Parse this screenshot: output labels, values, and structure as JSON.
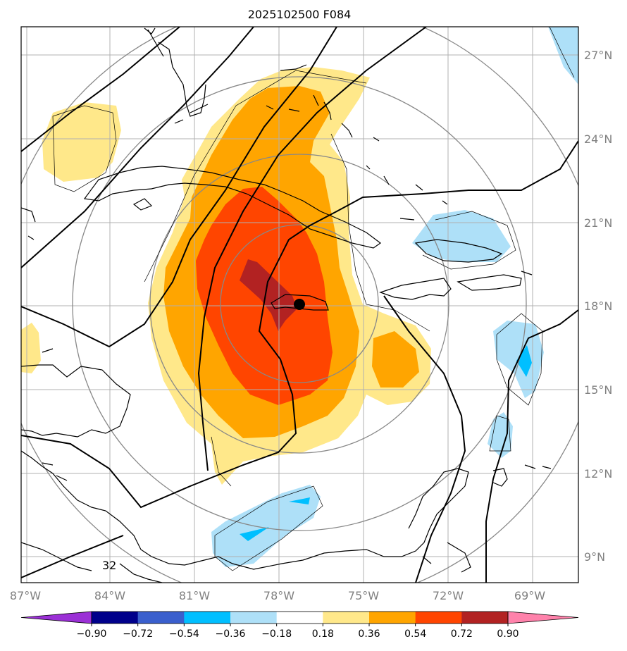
{
  "title": "2025102500 F084",
  "map": {
    "lon_ticks": [
      "87°W",
      "84°W",
      "81°W",
      "78°W",
      "75°W",
      "72°W",
      "69°W"
    ],
    "lat_ticks": [
      "27°N",
      "24°N",
      "21°N",
      "18°N",
      "15°N",
      "12°N",
      "9°N"
    ],
    "contour_label": "32",
    "center_marker": "storm-center-dot",
    "grid": true
  },
  "colorbar": {
    "tick_labels": [
      "−0.90",
      "−0.72",
      "−0.54",
      "−0.36",
      "−0.18",
      "0.18",
      "0.36",
      "0.54",
      "0.72",
      "0.90"
    ],
    "colors": [
      "#9b30d6",
      "#00008b",
      "#3a5fcd",
      "#00bfff",
      "#aee0f8",
      "#ffffff",
      "#ffe88a",
      "#ffa500",
      "#ff4500",
      "#b22222",
      "#ff82ab"
    ],
    "extend": "both"
  }
}
